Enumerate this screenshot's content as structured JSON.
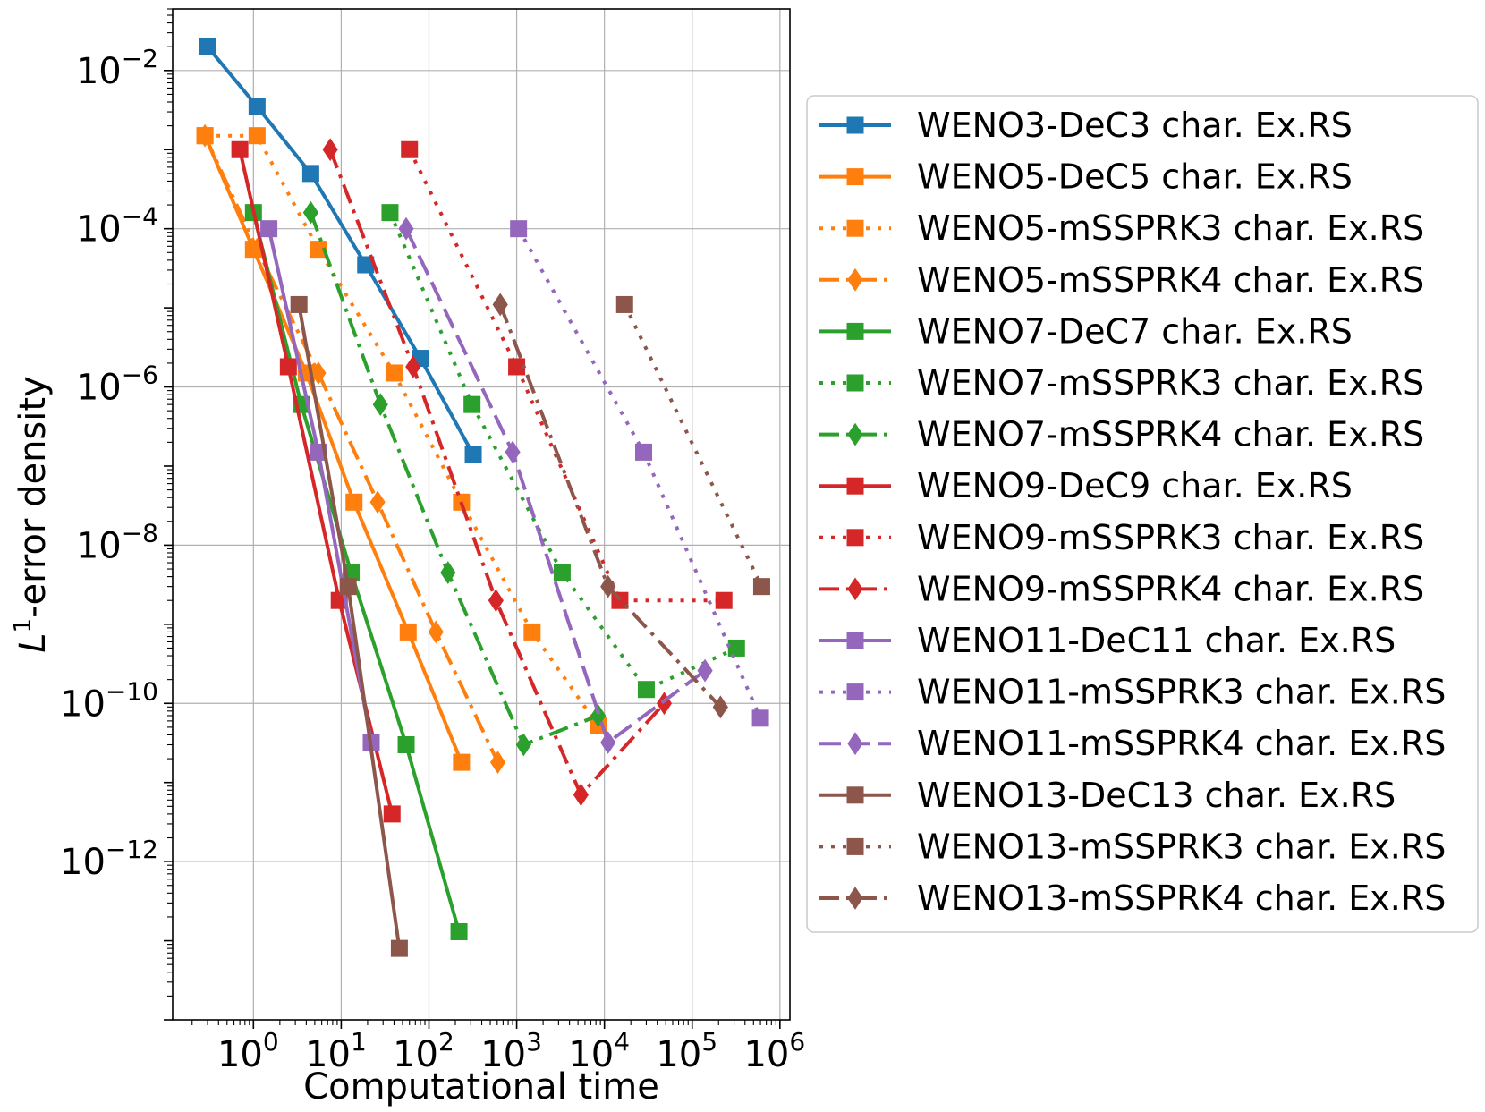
{
  "chart_data": {
    "type": "line",
    "xlabel": "Computational time",
    "ylabel_prefix": "L",
    "ylabel_sup": "1",
    "ylabel_suffix": "-error density",
    "xscale": "log",
    "yscale": "log",
    "xlim": [
      0.12,
      1300000
    ],
    "ylim": [
      1e-14,
      0.06
    ],
    "grid": true,
    "legend_position": "outside-right",
    "x_ticks": [
      {
        "base": "10",
        "exp": "0",
        "value": 1
      },
      {
        "base": "10",
        "exp": "1",
        "value": 10
      },
      {
        "base": "10",
        "exp": "2",
        "value": 100
      },
      {
        "base": "10",
        "exp": "3",
        "value": 1000
      },
      {
        "base": "10",
        "exp": "4",
        "value": 10000
      },
      {
        "base": "10",
        "exp": "5",
        "value": 100000
      },
      {
        "base": "10",
        "exp": "6",
        "value": 1000000
      }
    ],
    "y_ticks": [
      {
        "base": "10",
        "exp": "−2",
        "value": 0.01
      },
      {
        "base": "10",
        "exp": "−4",
        "value": 0.0001
      },
      {
        "base": "10",
        "exp": "−6",
        "value": 1e-06
      },
      {
        "base": "10",
        "exp": "−8",
        "value": 1e-08
      },
      {
        "base": "10",
        "exp": "−10",
        "value": 1e-10
      },
      {
        "base": "10",
        "exp": "−12",
        "value": 1e-12
      }
    ],
    "series": [
      {
        "name": "WENO3-DeC3 char. Ex.RS",
        "color": "#1f77b4",
        "dash": "solid",
        "marker": "square",
        "x": [
          0.3,
          1.1,
          4.5,
          19,
          80,
          320
        ],
        "y": [
          0.02,
          0.0035,
          0.0005,
          3.5e-05,
          2.3e-06,
          1.4e-07
        ]
      },
      {
        "name": "WENO5-DeC5 char. Ex.RS",
        "color": "#ff7f0e",
        "dash": "solid",
        "marker": "square",
        "x": [
          0.28,
          1.0,
          4.0,
          14,
          58,
          235
        ],
        "y": [
          0.0015,
          5.5e-05,
          1.5e-06,
          3.5e-08,
          8e-10,
          1.8e-11
        ]
      },
      {
        "name": "WENO5-mSSPRK3 char. Ex.RS",
        "color": "#ff7f0e",
        "dash": "dotted",
        "marker": "square",
        "x": [
          0.28,
          1.1,
          5.5,
          40,
          235,
          1500,
          8500
        ],
        "y": [
          0.0015,
          0.0015,
          5.5e-05,
          1.5e-06,
          3.5e-08,
          8e-10,
          5.2e-11
        ]
      },
      {
        "name": "WENO5-mSSPRK4 char. Ex.RS",
        "color": "#ff7f0e",
        "dash": "dashdot",
        "marker": "diamond",
        "x": [
          0.28,
          1.1,
          5.5,
          26,
          120,
          610
        ],
        "y": [
          0.0015,
          5.5e-05,
          1.5e-06,
          3.5e-08,
          8e-10,
          1.8e-11
        ]
      },
      {
        "name": "WENO7-DeC7 char. Ex.RS",
        "color": "#2ca02c",
        "dash": "solid",
        "marker": "square",
        "x": [
          1.0,
          3.5,
          13,
          55,
          220
        ],
        "y": [
          0.00016,
          6e-07,
          4.5e-09,
          3e-11,
          1.3e-13
        ]
      },
      {
        "name": "WENO7-mSSPRK3 char. Ex.RS",
        "color": "#2ca02c",
        "dash": "dotted",
        "marker": "square",
        "x": [
          36,
          310,
          3300,
          30000,
          320000
        ],
        "y": [
          0.00016,
          6e-07,
          4.5e-09,
          1.5e-10,
          5e-10
        ]
      },
      {
        "name": "WENO7-mSSPRK4 char. Ex.RS",
        "color": "#2ca02c",
        "dash": "dashdot",
        "marker": "diamond",
        "x": [
          4.5,
          28,
          165,
          1200,
          8500
        ],
        "y": [
          0.00016,
          6e-07,
          4.5e-09,
          3e-11,
          7e-11
        ]
      },
      {
        "name": "WENO9-DeC9 char. Ex.RS",
        "color": "#d62728",
        "dash": "solid",
        "marker": "square",
        "x": [
          0.7,
          2.5,
          9.5,
          38
        ],
        "y": [
          0.001,
          1.8e-06,
          2e-09,
          4e-12
        ]
      },
      {
        "name": "WENO9-mSSPRK3 char. Ex.RS",
        "color": "#d62728",
        "dash": "dotted",
        "marker": "square",
        "x": [
          60,
          1000,
          15000,
          230000
        ],
        "y": [
          0.001,
          1.8e-06,
          2e-09,
          2e-09
        ]
      },
      {
        "name": "WENO9-mSSPRK4 char. Ex.RS",
        "color": "#d62728",
        "dash": "dashdot",
        "marker": "diamond",
        "x": [
          7.5,
          66,
          580,
          5400,
          48000
        ],
        "y": [
          0.001,
          1.8e-06,
          2e-09,
          7e-12,
          1e-10
        ]
      },
      {
        "name": "WENO11-DeC11 char. Ex.RS",
        "color": "#9467bd",
        "dash": "solid",
        "marker": "square",
        "x": [
          1.5,
          5.5,
          22
        ],
        "y": [
          0.0001,
          1.5e-07,
          3.2e-11
        ]
      },
      {
        "name": "WENO11-mSSPRK3 char. Ex.RS",
        "color": "#9467bd",
        "dash": "dotted",
        "marker": "square",
        "x": [
          1050,
          28000,
          600000
        ],
        "y": [
          0.0001,
          1.5e-07,
          6.5e-11
        ]
      },
      {
        "name": "WENO11-mSSPRK4 char. Ex.RS",
        "color": "#9467bd",
        "dash": "dashed",
        "marker": "diamond",
        "x": [
          55,
          900,
          11000,
          140000
        ],
        "y": [
          0.0001,
          1.5e-07,
          3.2e-11,
          2.6e-10
        ]
      },
      {
        "name": "WENO13-DeC13 char. Ex.RS",
        "color": "#8c564b",
        "dash": "solid",
        "marker": "square",
        "x": [
          3.3,
          12,
          46
        ],
        "y": [
          1.1e-05,
          3e-09,
          8e-14
        ]
      },
      {
        "name": "WENO13-mSSPRK3 char. Ex.RS",
        "color": "#8c564b",
        "dash": "dotted",
        "marker": "square",
        "x": [
          17000,
          620000
        ],
        "y": [
          1.1e-05,
          3e-09
        ]
      },
      {
        "name": "WENO13-mSSPRK4 char. Ex.RS",
        "color": "#8c564b",
        "dash": "dashdot",
        "marker": "diamond",
        "x": [
          650,
          11000,
          210000
        ],
        "y": [
          1.1e-05,
          3e-09,
          9e-11
        ]
      }
    ]
  }
}
